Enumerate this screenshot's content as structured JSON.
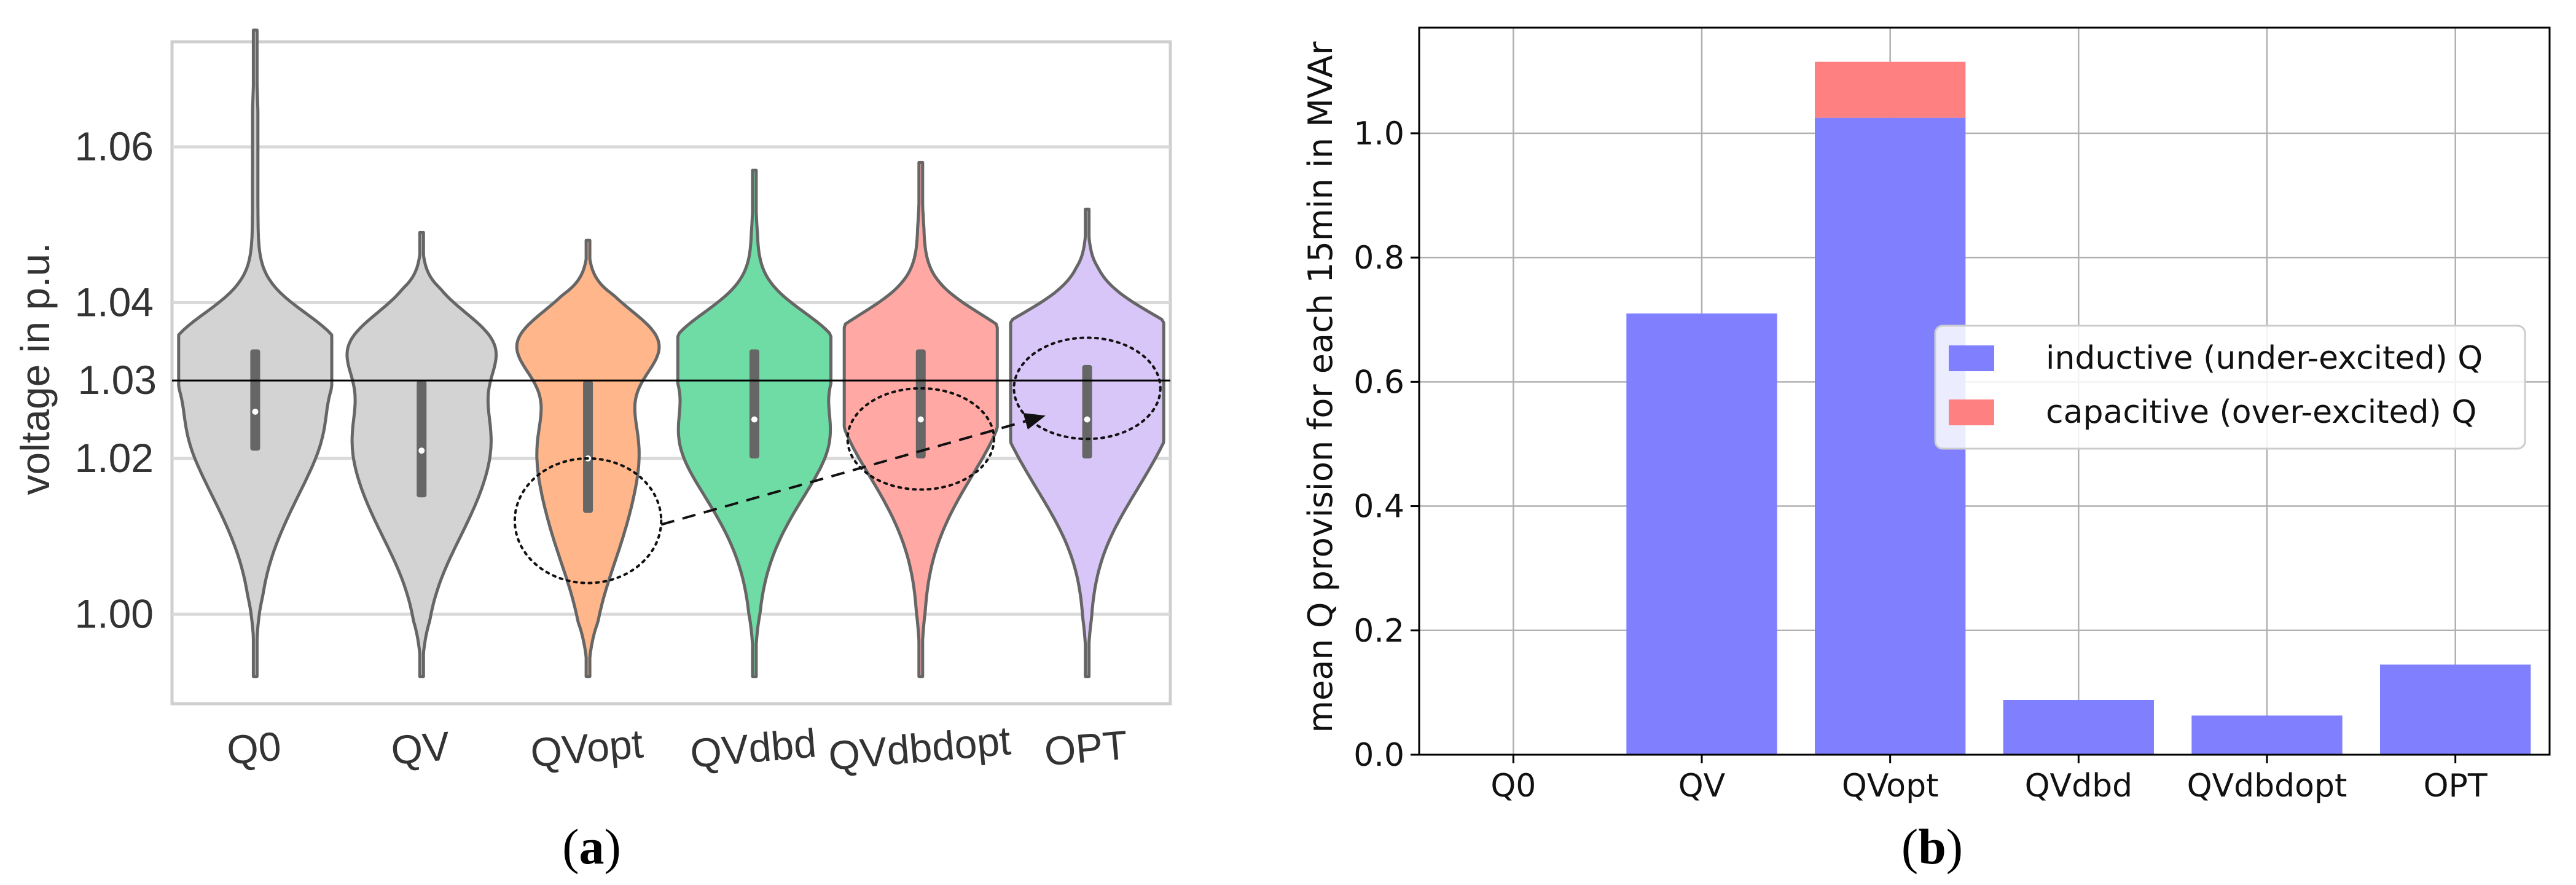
{
  "chart_data": [
    {
      "type": "violin",
      "title": "",
      "xlabel": "",
      "ylabel": "voltage in p.u.",
      "ylim": [
        0.9885,
        1.0735
      ],
      "yticks": [
        1.0,
        1.02,
        1.04,
        1.06
      ],
      "ytick_labels": [
        "1.00",
        "1.02",
        "1.04",
        "1.06"
      ],
      "grid": true,
      "categories": [
        "Q0",
        "QV",
        "QVopt",
        "QVdbd",
        "QVdbdopt",
        "OPT"
      ],
      "colors": [
        "#d3d3d3",
        "#d3d3d3",
        "#ffb68a",
        "#6edca4",
        "#ffa8a4",
        "#d8c6f8"
      ],
      "outline_color": "#666666",
      "violins": [
        {
          "name": "Q0",
          "min": 0.992,
          "max": 1.075,
          "q1": 1.021,
          "median": 1.026,
          "q3": 1.034,
          "bulge_lo": 1.02,
          "bulge_hi": 1.035,
          "neck": 1.027,
          "w_lo": 0.55,
          "w_hi": 0.75,
          "w_neck": 0.4
        },
        {
          "name": "QV",
          "min": 0.992,
          "max": 1.049,
          "q1": 1.015,
          "median": 1.021,
          "q3": 1.03,
          "bulge_lo": 1.017,
          "bulge_hi": 1.035,
          "neck": 1.026,
          "w_lo": 0.65,
          "w_hi": 0.7,
          "w_neck": 0.4
        },
        {
          "name": "QVopt",
          "min": 0.992,
          "max": 1.048,
          "q1": 1.013,
          "median": 1.02,
          "q3": 1.03,
          "bulge_lo": 1.014,
          "bulge_hi": 1.035,
          "neck": 1.024,
          "w_lo": 0.45,
          "w_hi": 0.8,
          "w_neck": 0.35
        },
        {
          "name": "QVdbd",
          "min": 0.992,
          "max": 1.057,
          "q1": 1.02,
          "median": 1.025,
          "q3": 1.034,
          "bulge_lo": 1.02,
          "bulge_hi": 1.035,
          "neck": 1.025,
          "w_lo": 0.6,
          "w_hi": 0.8,
          "w_neck": 0.4
        },
        {
          "name": "QVdbdopt",
          "min": 0.992,
          "max": 1.058,
          "q1": 1.02,
          "median": 1.025,
          "q3": 1.034,
          "bulge_lo": 1.022,
          "bulge_hi": 1.035,
          "neck": 1.028,
          "w_lo": 0.6,
          "w_hi": 0.8,
          "w_neck": 0.45
        },
        {
          "name": "OPT",
          "min": 0.992,
          "max": 1.052,
          "q1": 1.02,
          "median": 1.025,
          "q3": 1.032,
          "bulge_lo": 1.022,
          "bulge_hi": 1.035,
          "neck": 1.03,
          "w_lo": 0.75,
          "w_hi": 0.75,
          "w_neck": 0.5
        }
      ],
      "reference_line": {
        "value": 1.03,
        "label": "1.03",
        "label_color": "#ff0000",
        "line_color": "#000000"
      },
      "annotations": [
        {
          "type": "ellipse",
          "category": "QVopt",
          "center": 1.012,
          "half_height": 0.008
        },
        {
          "type": "ellipse",
          "category": "QVdbdopt",
          "center": 1.0225,
          "half_height": 0.0065
        },
        {
          "type": "ellipse",
          "category": "OPT",
          "center": 1.029,
          "half_height": 0.0065
        },
        {
          "type": "dashed_arrow",
          "from_category": "QVopt",
          "from_value": 1.0115,
          "to_category": "OPT",
          "to_value": 1.0255
        }
      ],
      "caption": "a"
    },
    {
      "type": "bar",
      "stacked": true,
      "title": "",
      "xlabel": "",
      "ylabel": "mean Q provision for each 15min in MVAr",
      "ylim": [
        0.0,
        1.17
      ],
      "yticks": [
        0.0,
        0.2,
        0.4,
        0.6,
        0.8,
        1.0
      ],
      "ytick_labels": [
        "0.0",
        "0.2",
        "0.4",
        "0.6",
        "0.8",
        "1.0"
      ],
      "grid": true,
      "categories": [
        "Q0",
        "QV",
        "QVopt",
        "QVdbd",
        "QVdbdopt",
        "OPT"
      ],
      "series": [
        {
          "name": "inductive (under-excited) Q",
          "color": "#8080ff",
          "values": [
            0.0,
            0.71,
            1.025,
            0.088,
            0.063,
            0.145
          ]
        },
        {
          "name": "capacitive (over-excited) Q",
          "color": "#ff8080",
          "values": [
            0.0,
            0.0,
            0.09,
            0.0,
            0.0,
            0.0
          ]
        }
      ],
      "legend_position": "center-right",
      "caption": "b"
    }
  ]
}
